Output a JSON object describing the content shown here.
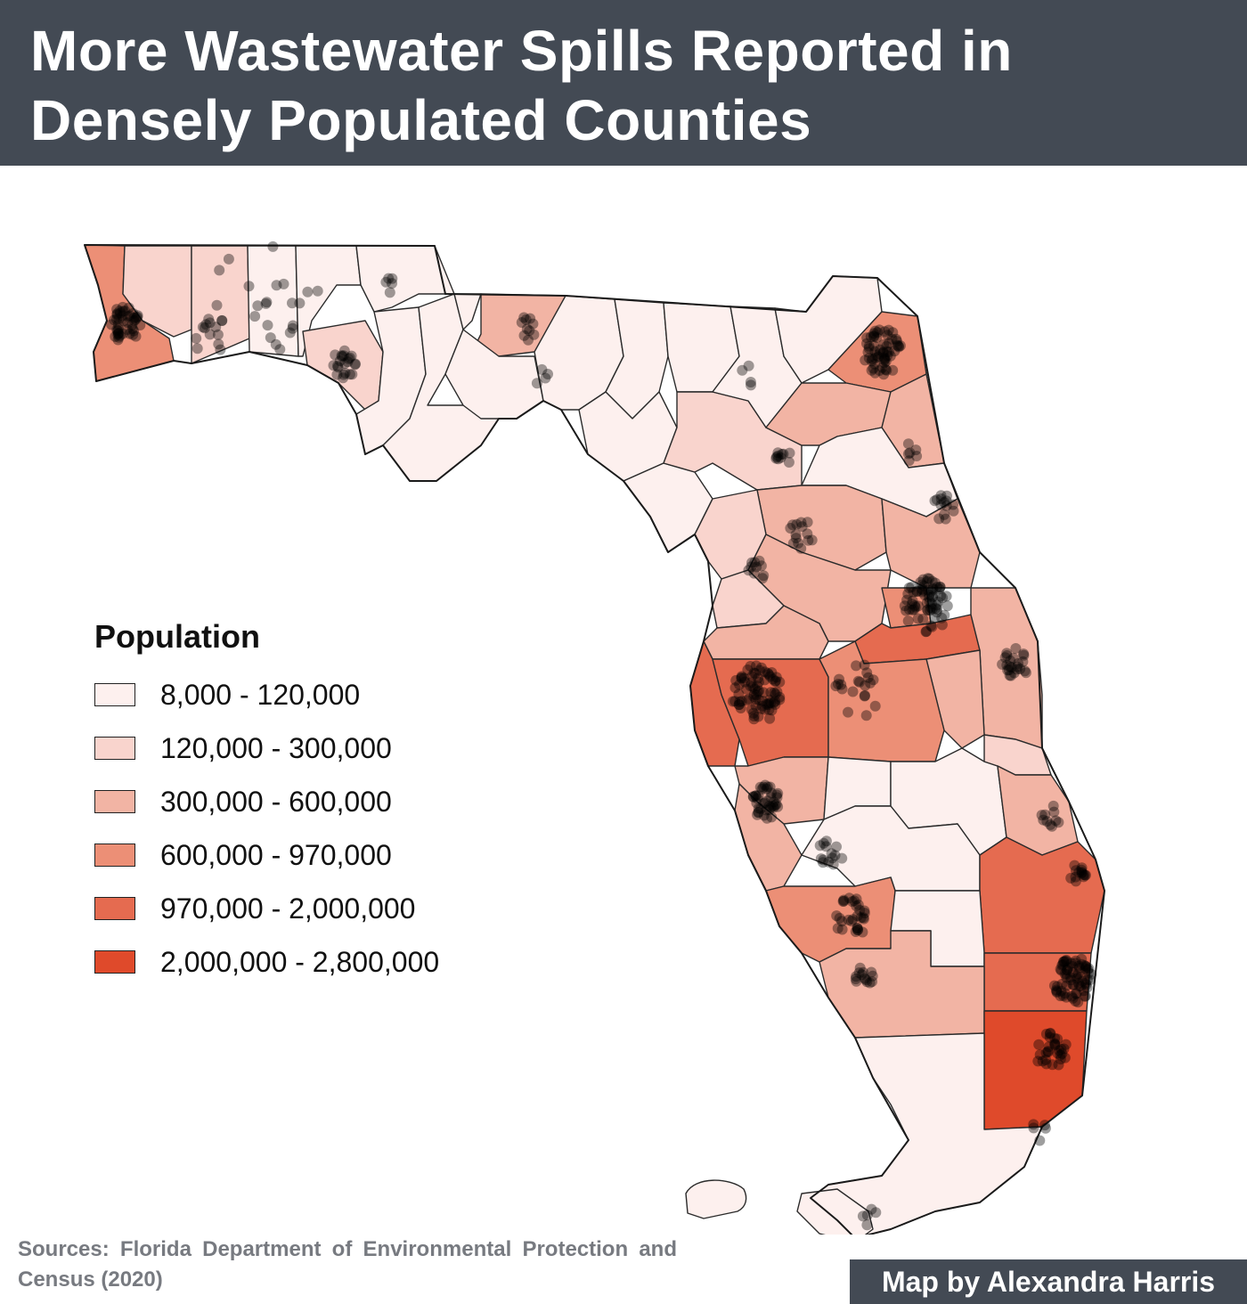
{
  "header": {
    "title": "More Wastewater Spills Reported in Densely Populated Counties"
  },
  "legend": {
    "title": "Population",
    "items": [
      {
        "label": "8,000 - 120,000",
        "color": "#fdf0ee"
      },
      {
        "label": "120,000 - 300,000",
        "color": "#f9d4cd"
      },
      {
        "label": "300,000 - 600,000",
        "color": "#f2b4a4"
      },
      {
        "label": "600,000 - 970,000",
        "color": "#ec8f76"
      },
      {
        "label": "970,000 - 2,000,000",
        "color": "#e56b50"
      },
      {
        "label": "2,000,000 - 2,800,000",
        "color": "#df4a2b"
      }
    ]
  },
  "footer": {
    "sources": "Sources: Florida Department of Environmental Protection and Census (2020)",
    "credit": "Map by Alexandra Harris"
  }
}
